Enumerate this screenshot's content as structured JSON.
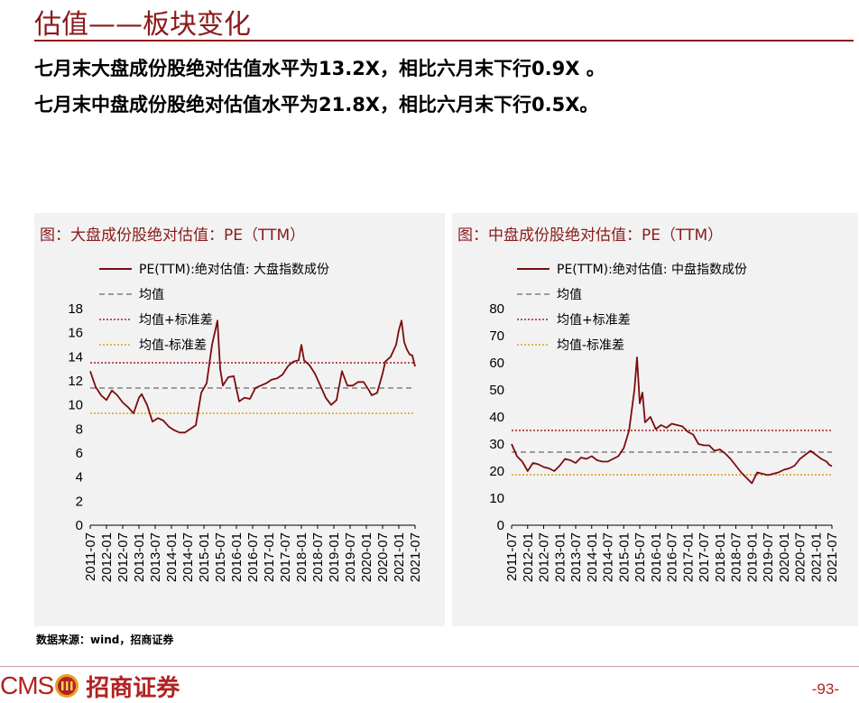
{
  "page": {
    "title": "估值——板块变化",
    "headline_1": "七月末大盘成份股绝对估值水平为13.2X，相比六月末下行0.9X 。",
    "headline_2": "七月末中盘成份股绝对估值水平为21.8X，相比六月末下行0.5X。",
    "source": "数据来源：wind，招商证券",
    "logo_text": "CMS",
    "logo_name": "招商证券",
    "page_number": "-93-"
  },
  "colors": {
    "series": "#7b0c0c",
    "mean": "#808080",
    "upper": "#a02020",
    "lower": "#e0a020",
    "accent": "#8b1a1a"
  },
  "chart_data": [
    {
      "type": "line",
      "panel_title": "图：大盘成份股绝对估值：PE（TTM）",
      "legend": [
        "PE(TTM):绝对估值: 大盘指数成份",
        "均值",
        "均值+标准差",
        "均值-标准差"
      ],
      "ylim": [
        0,
        18
      ],
      "yticks": [
        "0",
        "2",
        "4",
        "6",
        "8",
        "10",
        "12",
        "14",
        "16",
        "18"
      ],
      "xticks": [
        "2011-07",
        "2012-01",
        "2012-07",
        "2013-01",
        "2013-07",
        "2014-01",
        "2014-07",
        "2015-01",
        "2015-07",
        "2016-01",
        "2016-07",
        "2017-01",
        "2017-07",
        "2018-01",
        "2018-07",
        "2019-01",
        "2019-07",
        "2020-01",
        "2020-07",
        "2021-01",
        "2021-07"
      ],
      "x_start": "2011-07",
      "x_end": "2021-07",
      "mean": 11.4,
      "upper": 13.5,
      "lower": 9.3,
      "points": [
        [
          "2011-07",
          12.8
        ],
        [
          "2011-09",
          11.5
        ],
        [
          "2011-11",
          10.8
        ],
        [
          "2012-01",
          10.4
        ],
        [
          "2012-03",
          11.2
        ],
        [
          "2012-05",
          10.8
        ],
        [
          "2012-07",
          10.2
        ],
        [
          "2012-09",
          9.8
        ],
        [
          "2012-11",
          9.3
        ],
        [
          "2013-01",
          10.6
        ],
        [
          "2013-02",
          10.9
        ],
        [
          "2013-04",
          10.0
        ],
        [
          "2013-06",
          8.6
        ],
        [
          "2013-08",
          8.9
        ],
        [
          "2013-10",
          8.7
        ],
        [
          "2013-12",
          8.2
        ],
        [
          "2014-02",
          7.9
        ],
        [
          "2014-04",
          7.7
        ],
        [
          "2014-06",
          7.7
        ],
        [
          "2014-08",
          8.0
        ],
        [
          "2014-10",
          8.3
        ],
        [
          "2014-12",
          11.0
        ],
        [
          "2015-02",
          11.8
        ],
        [
          "2015-04",
          15.0
        ],
        [
          "2015-06",
          17.0
        ],
        [
          "2015-07",
          13.0
        ],
        [
          "2015-08",
          11.6
        ],
        [
          "2015-10",
          12.3
        ],
        [
          "2015-12",
          12.4
        ],
        [
          "2016-02",
          10.3
        ],
        [
          "2016-04",
          10.6
        ],
        [
          "2016-06",
          10.5
        ],
        [
          "2016-08",
          11.4
        ],
        [
          "2016-10",
          11.6
        ],
        [
          "2016-12",
          11.8
        ],
        [
          "2017-02",
          12.1
        ],
        [
          "2017-04",
          12.2
        ],
        [
          "2017-06",
          12.5
        ],
        [
          "2017-08",
          13.2
        ],
        [
          "2017-10",
          13.6
        ],
        [
          "2017-12",
          13.7
        ],
        [
          "2018-01",
          15.0
        ],
        [
          "2018-02",
          13.7
        ],
        [
          "2018-04",
          13.3
        ],
        [
          "2018-06",
          12.6
        ],
        [
          "2018-08",
          11.6
        ],
        [
          "2018-10",
          10.6
        ],
        [
          "2018-12",
          10.0
        ],
        [
          "2019-02",
          10.4
        ],
        [
          "2019-04",
          12.8
        ],
        [
          "2019-06",
          11.6
        ],
        [
          "2019-08",
          11.6
        ],
        [
          "2019-10",
          11.9
        ],
        [
          "2019-12",
          11.9
        ],
        [
          "2020-02",
          11.2
        ],
        [
          "2020-03",
          10.8
        ],
        [
          "2020-05",
          11.0
        ],
        [
          "2020-07",
          12.6
        ],
        [
          "2020-08",
          13.6
        ],
        [
          "2020-10",
          14.0
        ],
        [
          "2020-12",
          15.0
        ],
        [
          "2021-01",
          16.2
        ],
        [
          "2021-02",
          17.0
        ],
        [
          "2021-03",
          15.2
        ],
        [
          "2021-04",
          14.6
        ],
        [
          "2021-05",
          14.2
        ],
        [
          "2021-06",
          14.1
        ],
        [
          "2021-07",
          13.2
        ]
      ]
    },
    {
      "type": "line",
      "panel_title": "图：中盘成份股绝对估值：PE（TTM）",
      "legend": [
        "PE(TTM):绝对估值: 中盘指数成份",
        "均值",
        "均值+标准差",
        "均值-标准差"
      ],
      "ylim": [
        0,
        80
      ],
      "yticks": [
        "0",
        "10",
        "20",
        "30",
        "40",
        "50",
        "60",
        "70",
        "80"
      ],
      "xticks": [
        "2011-07",
        "2012-01",
        "2012-07",
        "2013-01",
        "2013-07",
        "2014-01",
        "2014-07",
        "2015-01",
        "2015-07",
        "2016-01",
        "2016-07",
        "2017-01",
        "2017-07",
        "2018-01",
        "2018-07",
        "2019-01",
        "2019-07",
        "2020-01",
        "2020-07",
        "2021-01",
        "2021-07"
      ],
      "x_start": "2011-07",
      "x_end": "2021-07",
      "mean": 27.0,
      "upper": 35.0,
      "lower": 18.6,
      "points": [
        [
          "2011-07",
          30.0
        ],
        [
          "2011-09",
          25.5
        ],
        [
          "2011-11",
          23.5
        ],
        [
          "2012-01",
          20.0
        ],
        [
          "2012-03",
          23.0
        ],
        [
          "2012-05",
          22.5
        ],
        [
          "2012-07",
          21.5
        ],
        [
          "2012-09",
          21.0
        ],
        [
          "2012-11",
          20.0
        ],
        [
          "2013-01",
          22.0
        ],
        [
          "2013-03",
          24.5
        ],
        [
          "2013-05",
          24.0
        ],
        [
          "2013-07",
          23.0
        ],
        [
          "2013-09",
          25.0
        ],
        [
          "2013-11",
          24.5
        ],
        [
          "2014-01",
          25.5
        ],
        [
          "2014-03",
          24.0
        ],
        [
          "2014-05",
          23.5
        ],
        [
          "2014-07",
          23.5
        ],
        [
          "2014-09",
          24.5
        ],
        [
          "2014-11",
          25.5
        ],
        [
          "2015-01",
          28.5
        ],
        [
          "2015-03",
          35.0
        ],
        [
          "2015-05",
          50.0
        ],
        [
          "2015-06",
          62.0
        ],
        [
          "2015-07",
          45.0
        ],
        [
          "2015-08",
          49.0
        ],
        [
          "2015-09",
          38.0
        ],
        [
          "2015-11",
          40.0
        ],
        [
          "2016-01",
          35.5
        ],
        [
          "2016-03",
          37.0
        ],
        [
          "2016-05",
          36.0
        ],
        [
          "2016-07",
          37.5
        ],
        [
          "2016-09",
          37.0
        ],
        [
          "2016-11",
          36.5
        ],
        [
          "2017-01",
          34.5
        ],
        [
          "2017-03",
          33.5
        ],
        [
          "2017-05",
          30.0
        ],
        [
          "2017-07",
          29.5
        ],
        [
          "2017-09",
          29.5
        ],
        [
          "2017-11",
          27.5
        ],
        [
          "2018-01",
          28.0
        ],
        [
          "2018-03",
          26.5
        ],
        [
          "2018-05",
          24.5
        ],
        [
          "2018-07",
          22.0
        ],
        [
          "2018-09",
          19.5
        ],
        [
          "2018-11",
          17.5
        ],
        [
          "2019-01",
          15.5
        ],
        [
          "2019-03",
          19.5
        ],
        [
          "2019-05",
          19.0
        ],
        [
          "2019-07",
          18.5
        ],
        [
          "2019-09",
          19.0
        ],
        [
          "2019-11",
          19.5
        ],
        [
          "2020-01",
          20.5
        ],
        [
          "2020-03",
          21.0
        ],
        [
          "2020-05",
          22.0
        ],
        [
          "2020-07",
          24.5
        ],
        [
          "2020-09",
          26.0
        ],
        [
          "2020-11",
          27.5
        ],
        [
          "2021-01",
          26.0
        ],
        [
          "2021-03",
          24.5
        ],
        [
          "2021-05",
          23.5
        ],
        [
          "2021-06",
          22.3
        ],
        [
          "2021-07",
          21.8
        ]
      ]
    }
  ]
}
